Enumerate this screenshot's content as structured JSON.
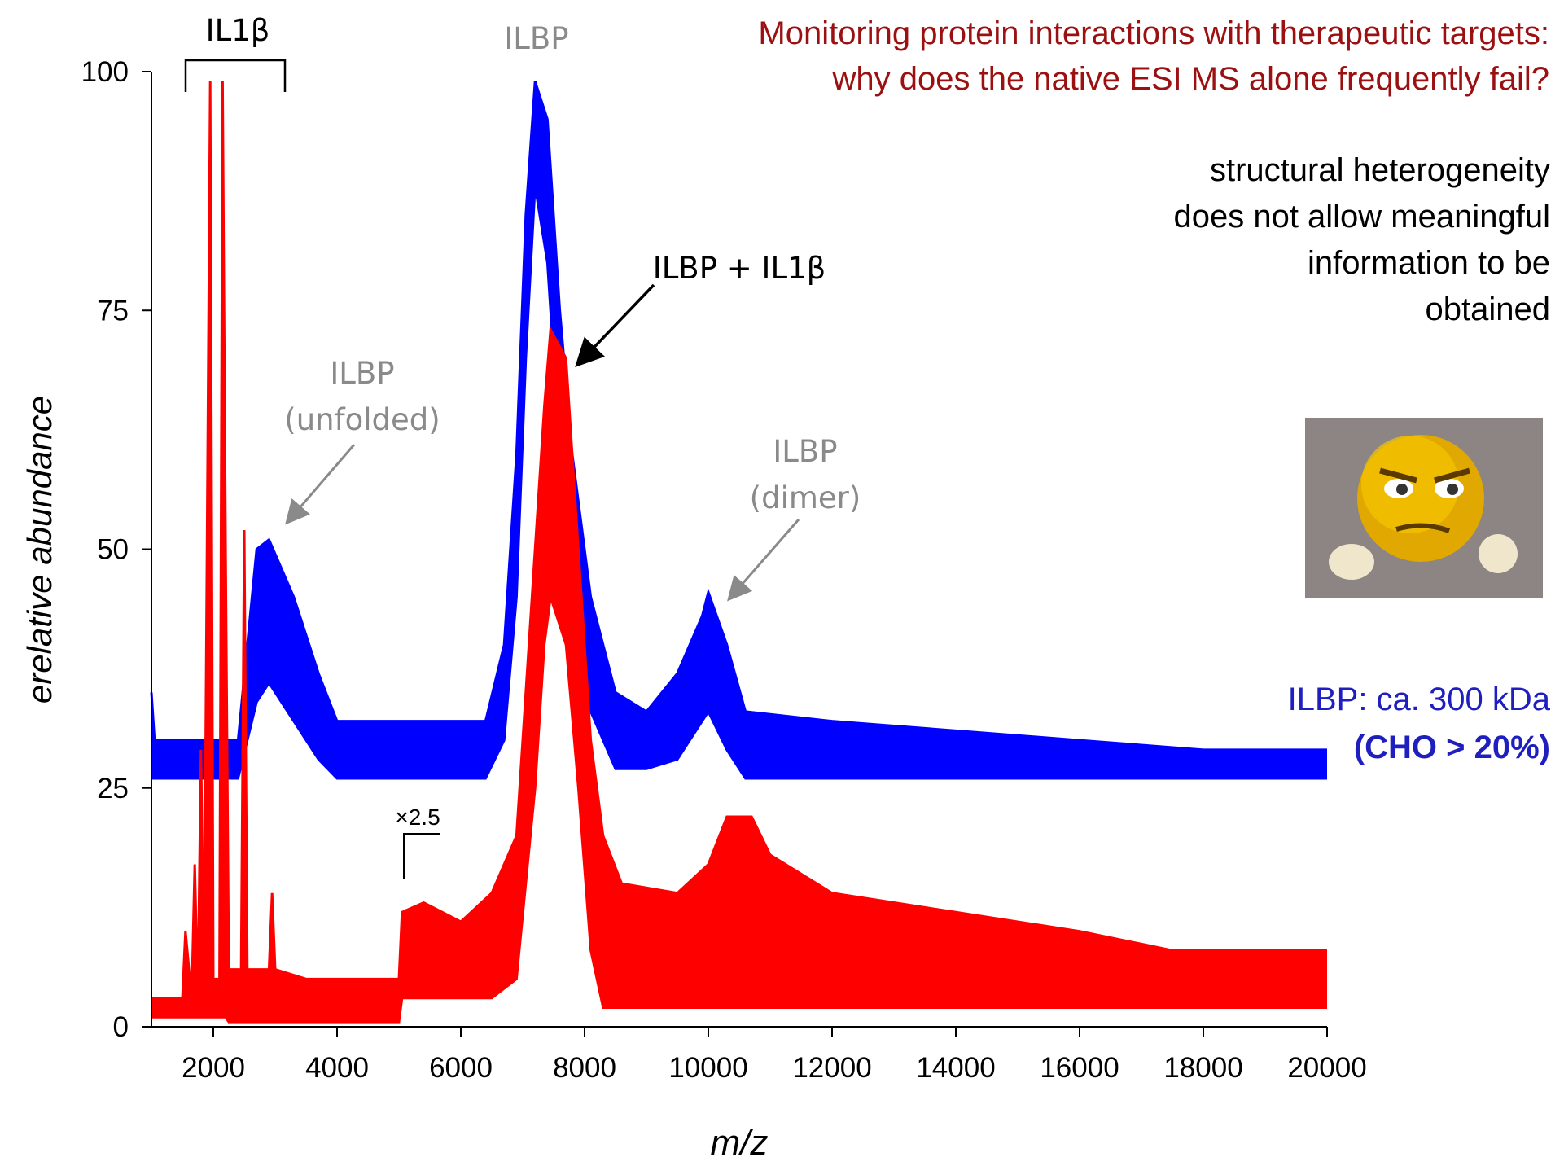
{
  "chart_data": {
    "type": "band",
    "title_lines": [
      "Monitoring protein interactions with therapeutic targets:",
      "why does the native ESI MS alone frequently fail?"
    ],
    "notes": [
      "structural heterogeneity",
      "does not allow meaningful",
      "information to be",
      "obtained"
    ],
    "mass_note": [
      "ILBP: ca. 300 kDa",
      "(CHO > 20%)"
    ],
    "annotations": [
      "IL1β",
      "ILBP",
      "ILBP",
      "(unfolded)",
      "ILBP",
      "(dimer)",
      "ILBP + IL1β",
      "×2.5"
    ],
    "x_label": "m/z",
    "y_label": "erelative abundance",
    "xlim": [
      1000,
      20000
    ],
    "xticks": [
      2000,
      4000,
      6000,
      8000,
      10000,
      12000,
      14000,
      16000,
      18000,
      20000
    ],
    "ylim": [
      0,
      100
    ],
    "yticks": [
      0,
      25,
      50,
      75,
      100
    ],
    "grid": false,
    "series": [
      {
        "color": "#0000ff",
        "x": [
          1000,
          1050,
          1100,
          2400,
          2700,
          2900,
          3300,
          3700,
          4000,
          6400,
          6700,
          6900,
          7050,
          7200,
          7400,
          7600,
          7800,
          8100,
          8500,
          9000,
          9500,
          9900,
          10000,
          10300,
          10600,
          12000,
          14000,
          16000,
          18000,
          20000
        ],
        "values": [
          35,
          30,
          30,
          30,
          50,
          51,
          45,
          37,
          32,
          32,
          40,
          60,
          85,
          99,
          95,
          75,
          60,
          45,
          35,
          33,
          37,
          43,
          45.5,
          40,
          33,
          32,
          31,
          30,
          29,
          29
        ],
        "low": [
          26,
          26,
          26,
          26,
          34,
          36,
          32,
          28,
          26,
          26,
          30,
          45,
          70,
          88,
          80,
          60,
          45,
          33,
          27,
          27,
          28,
          32,
          33,
          29,
          26,
          26,
          26,
          26,
          26,
          26
        ]
      },
      {
        "color": "#ff0000",
        "x": [
          1000,
          1500,
          1550,
          1650,
          1700,
          1750,
          1800,
          1850,
          1950,
          2000,
          2100,
          2150,
          2200,
          2250,
          2450,
          2500,
          2550,
          2900,
          2950,
          3000,
          3500,
          5000,
          5050,
          5400,
          6000,
          6500,
          6900,
          7200,
          7350,
          7450,
          7700,
          7900,
          8100,
          8300,
          8600,
          9500,
          10000,
          10300,
          10700,
          11000,
          12000,
          13000,
          14000,
          16000,
          17500,
          20000
        ],
        "values": [
          3,
          3,
          10,
          3,
          17,
          3,
          29,
          5,
          99,
          5,
          5,
          99,
          49,
          6,
          6,
          52,
          6,
          6,
          14,
          6,
          5,
          5,
          12,
          13,
          11,
          14,
          20,
          50,
          65,
          73,
          70,
          50,
          30,
          20,
          15,
          14,
          17,
          22,
          22,
          18,
          14,
          13,
          12,
          10,
          8,
          8
        ],
        "low": [
          1,
          1,
          1,
          1,
          1,
          1,
          1,
          1,
          1,
          1,
          1,
          1,
          1,
          0.5,
          0.5,
          0.5,
          0.5,
          0.5,
          0.5,
          0.5,
          0.5,
          0.5,
          3,
          3,
          3,
          3,
          5,
          25,
          40,
          45,
          40,
          25,
          8,
          2,
          2,
          2,
          2,
          2,
          2,
          2,
          2,
          2,
          2,
          2,
          2,
          2
        ]
      }
    ]
  }
}
